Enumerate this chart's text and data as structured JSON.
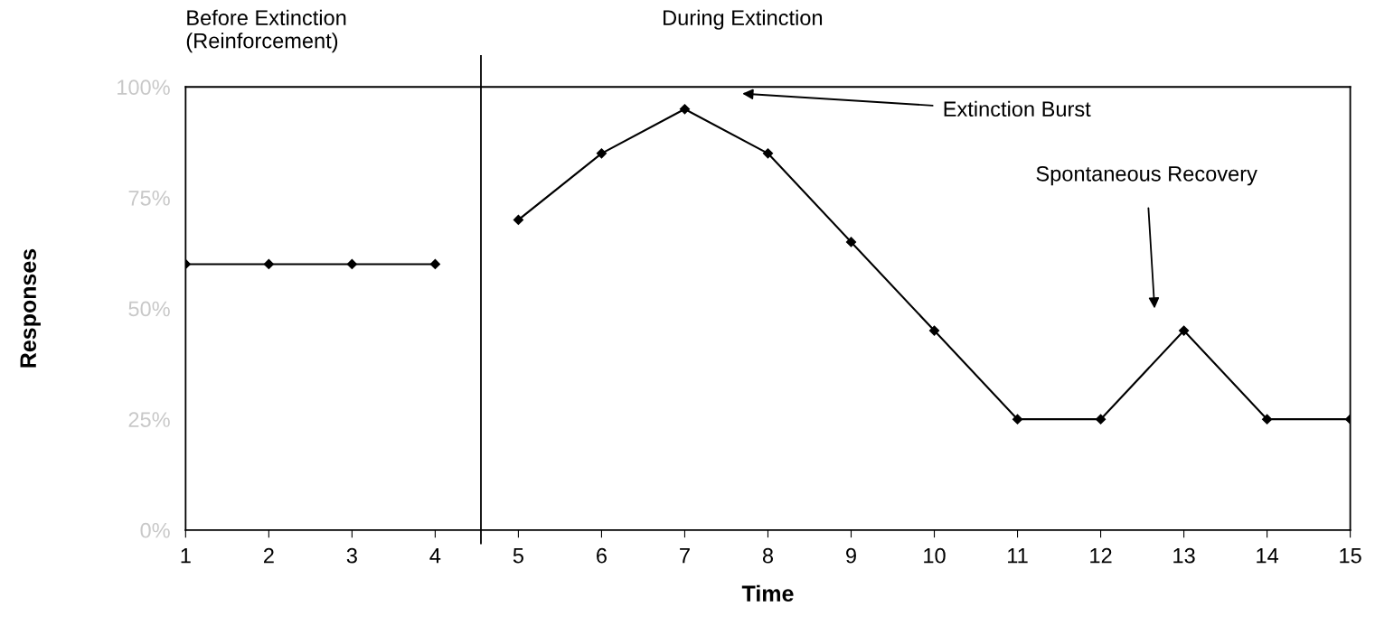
{
  "chart_data": {
    "type": "line",
    "xlabel": "Time",
    "ylabel": "Responses",
    "xlim": [
      1,
      15
    ],
    "xticks": [
      1,
      2,
      3,
      4,
      5,
      6,
      7,
      8,
      9,
      10,
      11,
      12,
      13,
      14,
      15
    ],
    "ylim": [
      0,
      100
    ],
    "yticks": [
      {
        "value": 0,
        "label": "0%"
      },
      {
        "value": 25,
        "label": "25%"
      },
      {
        "value": 50,
        "label": "50%"
      },
      {
        "value": 75,
        "label": "75%"
      },
      {
        "value": 100,
        "label": "100%"
      }
    ],
    "series": [
      {
        "color": "#000000",
        "x": [
          1,
          2,
          3,
          4
        ],
        "values": [
          60,
          60,
          60,
          60
        ]
      },
      {
        "color": "#000000",
        "x": [
          5,
          6,
          7,
          8,
          9,
          10,
          11,
          12,
          13,
          14,
          15
        ],
        "values": [
          70,
          85,
          95,
          85,
          65,
          45,
          25,
          25,
          45,
          25,
          25
        ]
      }
    ],
    "marker": "diamond",
    "line_style": "solid",
    "grid": false,
    "ref_lines": [
      {
        "axis": "x",
        "value": 4.55,
        "color": "#000000"
      }
    ],
    "annotations": [
      "Before Extinction\n(Reinforcement)",
      "During Extinction",
      "Extinction Burst",
      "Spontaneous Recovery"
    ]
  }
}
